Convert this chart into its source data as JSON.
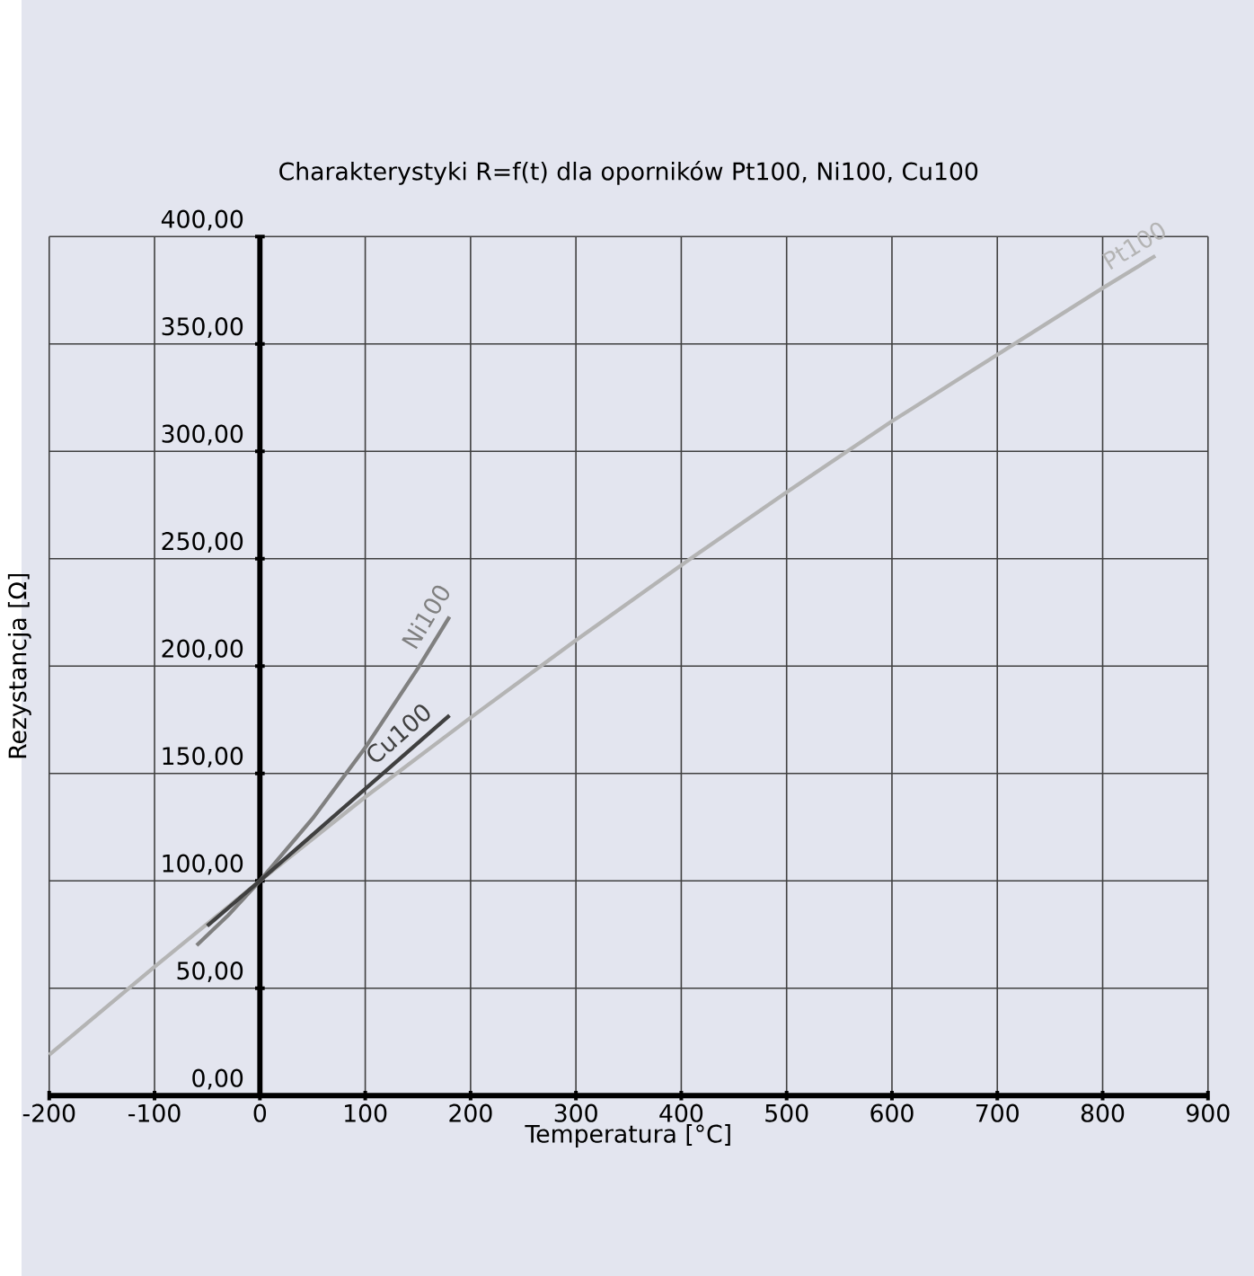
{
  "chart_data": {
    "type": "line",
    "title": "Charakterystyki R=f(t) dla oporników Pt100, Ni100, Cu100",
    "xlabel": "Temperatura [°C]",
    "ylabel": "Rezystancja [Ω]",
    "xlim": [
      -200,
      900
    ],
    "ylim": [
      0,
      400
    ],
    "xticks": [
      -200,
      -100,
      0,
      100,
      200,
      300,
      400,
      500,
      600,
      700,
      800,
      900
    ],
    "yticks": [
      {
        "value": 0,
        "label": "0,00"
      },
      {
        "value": 50,
        "label": "50,00"
      },
      {
        "value": 100,
        "label": "100,00"
      },
      {
        "value": 150,
        "label": "150,00"
      },
      {
        "value": 200,
        "label": "200,00"
      },
      {
        "value": 250,
        "label": "250,00"
      },
      {
        "value": 300,
        "label": "300,00"
      },
      {
        "value": 350,
        "label": "350,00"
      },
      {
        "value": 400,
        "label": "400,00"
      }
    ],
    "grid": true,
    "series": [
      {
        "name": "Pt100",
        "color": "#b4b4b4",
        "x": [
          -200,
          -100,
          0,
          100,
          200,
          300,
          400,
          500,
          600,
          700,
          800,
          850
        ],
        "values": [
          19,
          60,
          100,
          139,
          176,
          212,
          247,
          281,
          314,
          345,
          376,
          391
        ]
      },
      {
        "name": "Ni100",
        "color": "#808080",
        "x": [
          -60,
          -30,
          0,
          50,
          100,
          150,
          180
        ],
        "values": [
          70,
          84,
          100,
          129,
          162,
          199,
          223
        ]
      },
      {
        "name": "Cu100",
        "color": "#404040",
        "x": [
          -50,
          0,
          180
        ],
        "values": [
          79,
          100,
          177
        ]
      }
    ]
  }
}
